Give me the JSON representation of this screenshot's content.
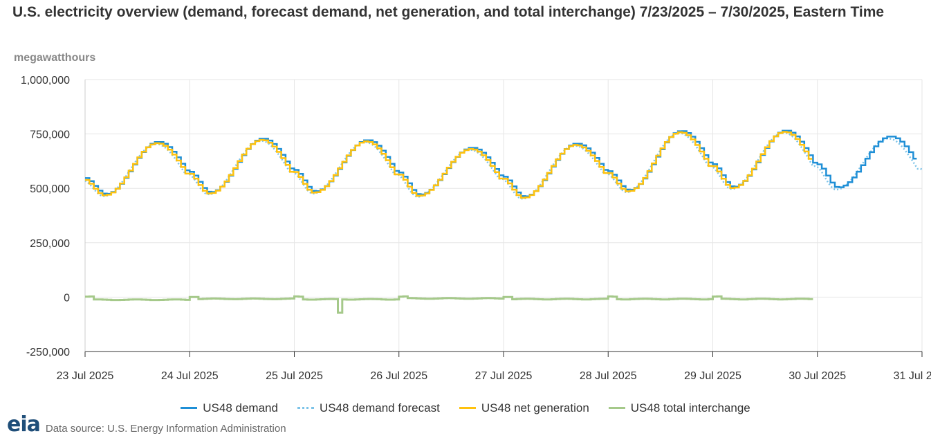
{
  "title": "U.S. electricity overview (demand, forecast demand, net generation, and total interchange) 7/23/2025 – 7/30/2025, Eastern Time",
  "unit_label": "megawatthours",
  "data_source": "Data source: U.S. Energy Information Administration",
  "logo_text": "eia",
  "chart_data": {
    "type": "line",
    "title": "U.S. electricity overview (demand, forecast demand, net generation, and total interchange) 7/23/2025 – 7/30/2025, Eastern Time",
    "ylabel": "megawatthours",
    "xlabel": "",
    "ylim": [
      -250000,
      1000000
    ],
    "yticks": [
      1000000,
      750000,
      500000,
      250000,
      0,
      -250000
    ],
    "ytick_labels": [
      "1,000,000",
      "750,000",
      "500,000",
      "250,000",
      "0",
      "-250,000"
    ],
    "xlim": [
      "2025-07-23",
      "2025-07-31"
    ],
    "xtick_labels": [
      "23 Jul 2025",
      "24 Jul 2025",
      "25 Jul 2025",
      "26 Jul 2025",
      "27 Jul 2025",
      "28 Jul 2025",
      "29 Jul 2025",
      "30 Jul 2025",
      "31 Jul 2025"
    ],
    "grid": true,
    "legend_position": "bottom",
    "daily_profile": {
      "min_values": [
        470000,
        478000,
        482000,
        467000,
        458000,
        488000,
        503000,
        500000
      ],
      "max_values": [
        710000,
        725000,
        718000,
        683000,
        702000,
        760000,
        762000,
        735000
      ],
      "min_hour": 5,
      "max_hour": 17
    },
    "series": [
      {
        "name": "US48 demand",
        "color": "#1f8fd6",
        "style": "step",
        "x_end_day": 7.95
      },
      {
        "name": "US48 demand forecast",
        "color": "#7cc3e8",
        "style": "dotted",
        "x_end_day": 8.0
      },
      {
        "name": "US48 net generation",
        "color": "#ffc20e",
        "style": "step",
        "x_end_day": 6.95
      },
      {
        "name": "US48 total interchange",
        "color": "#a5c98a",
        "style": "step",
        "x_end_day": 6.95,
        "values_by_day": [
          -12000,
          -8000,
          -10000,
          -6000,
          -9000,
          -9000,
          -9000
        ],
        "dip": {
          "day_offset": 2.42,
          "value": -72000
        }
      }
    ]
  }
}
